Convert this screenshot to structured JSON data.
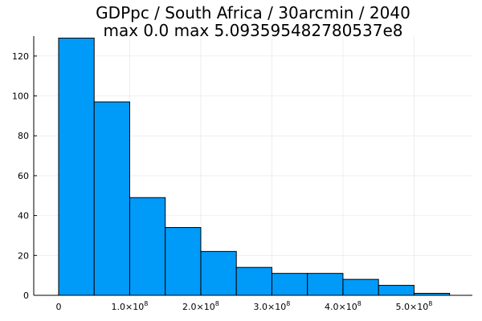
{
  "chart_data": {
    "type": "bar",
    "title": "GDPpc / South Africa / 30arcmin / 2040",
    "subtitle": "max 0.0  max 5.093595482780537e8",
    "xlabel": "",
    "ylabel": "",
    "bin_edges": [
      0,
      50000000,
      100000000,
      150000000,
      200000000,
      250000000,
      300000000,
      350000000,
      400000000,
      450000000,
      500000000,
      550000000
    ],
    "values": [
      129,
      97,
      49,
      34,
      22,
      14,
      11,
      11,
      8,
      5,
      1
    ],
    "xlim": [
      -35000000,
      582000000
    ],
    "ylim": [
      0,
      130
    ],
    "x_ticks": [
      {
        "value": 0,
        "mantissa": "0",
        "exponent": ""
      },
      {
        "value": 100000000,
        "mantissa": "1.0×10",
        "exponent": "8"
      },
      {
        "value": 200000000,
        "mantissa": "2.0×10",
        "exponent": "8"
      },
      {
        "value": 300000000,
        "mantissa": "3.0×10",
        "exponent": "8"
      },
      {
        "value": 400000000,
        "mantissa": "4.0×10",
        "exponent": "8"
      },
      {
        "value": 500000000,
        "mantissa": "5.0×10",
        "exponent": "8"
      }
    ],
    "y_ticks": [
      0,
      20,
      40,
      60,
      80,
      100,
      120
    ],
    "grid": true,
    "legend": "none",
    "bar_color": "#009af9"
  }
}
